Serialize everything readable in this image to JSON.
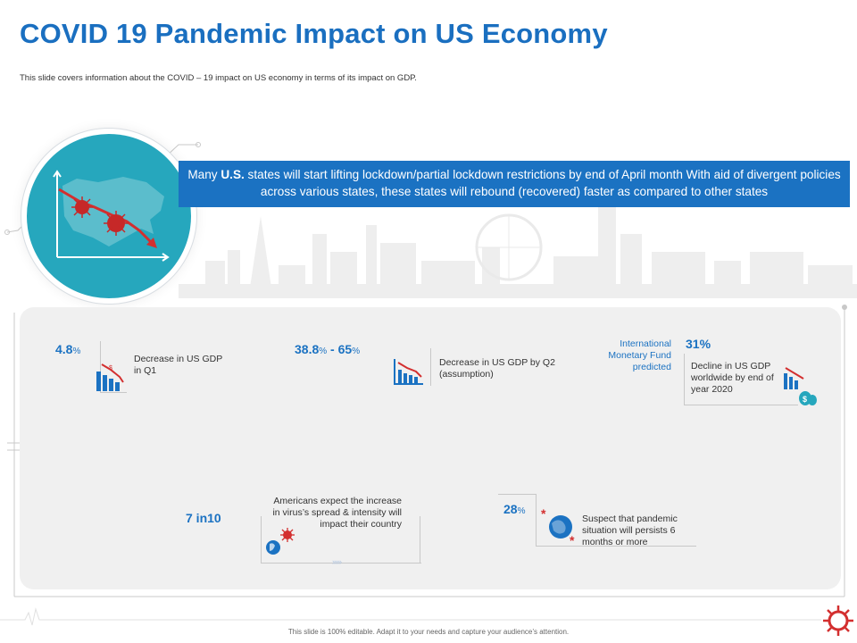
{
  "header": {
    "title": "COVID 19 Pandemic Impact on US Economy",
    "subtitle": "This slide covers information about the COVID – 19 impact on US economy in terms of its impact on GDP."
  },
  "banner": {
    "prefix": "Many ",
    "highlight": "U.S.",
    "text": " states will start lifting lockdown/partial lockdown restrictions by end of April month With aid of divergent policies across various states, these states will rebound (recovered) faster as compared to other states"
  },
  "stats": {
    "q1": {
      "value": "4.8",
      "unit": "%",
      "label": "Decrease in US GDP in Q1",
      "icon": "declining-bar-chart-icon"
    },
    "q2": {
      "value_low": "38.8",
      "value_high": "65",
      "unit": "%",
      "separator": " - ",
      "label": "Decrease in US GDP by Q2 (assumption)",
      "icon": "declining-bar-chart-icon"
    },
    "worldwide": {
      "source": "International Monetary Fund predicted",
      "value": "31%",
      "label": "Decline in US GDP worldwide by end of year 2020",
      "icon": "money-bags-chart-icon"
    },
    "americans": {
      "value": "7 in10",
      "label": "Americans expect the increase in virus’s spread & intensity will impact their country",
      "icon": "virus-globe-icon"
    },
    "pandemic": {
      "value": "28",
      "unit": "%",
      "label": "Suspect that pandemic situation will persists 6 months or more",
      "icon": "virus-world-icon"
    }
  },
  "colors": {
    "accent": "#1b72c2",
    "hub": "#26a7bd",
    "virus_red": "#d32f2f"
  },
  "footer": {
    "text": "This slide is 100% editable. Adapt it to your needs and capture your audience’s attention."
  }
}
